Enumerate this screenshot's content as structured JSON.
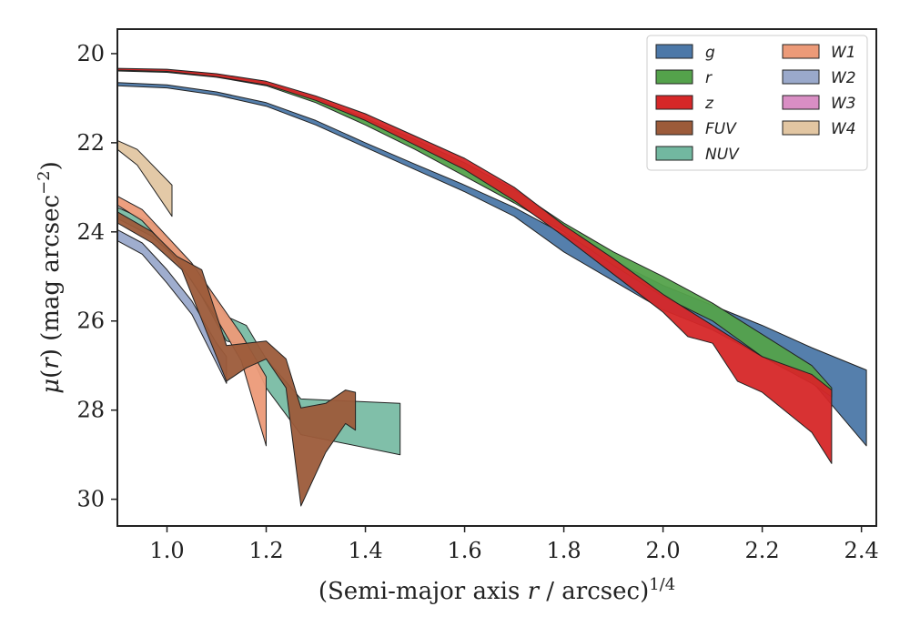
{
  "chart_data": {
    "type": "area",
    "xlabel": "(Semi-major axis r / arcsec)^{1/4}",
    "ylabel": "μ(r) (mag arcsec^{-2})",
    "xlim": [
      0.9,
      2.43
    ],
    "ylim": [
      30.6,
      19.45
    ],
    "y_inverted": true,
    "grid": false,
    "legend_position": "top-right",
    "legend_columns": 2,
    "xticks": [
      "1.0",
      "1.2",
      "1.4",
      "1.6",
      "1.8",
      "2.0",
      "2.2",
      "2.4"
    ],
    "yticks": [
      "20",
      "22",
      "24",
      "26",
      "28",
      "30"
    ],
    "series": [
      {
        "name": "g",
        "color": "#4c78a8",
        "upper": [
          [
            0.9,
            20.65
          ],
          [
            1.0,
            20.7
          ],
          [
            1.1,
            20.86
          ],
          [
            1.2,
            21.1
          ],
          [
            1.3,
            21.5
          ],
          [
            1.4,
            22.0
          ],
          [
            1.5,
            22.48
          ],
          [
            1.6,
            22.95
          ],
          [
            1.7,
            23.45
          ],
          [
            1.8,
            24.05
          ],
          [
            1.9,
            24.65
          ],
          [
            2.0,
            25.2
          ],
          [
            2.1,
            25.65
          ],
          [
            2.2,
            26.1
          ],
          [
            2.3,
            26.6
          ],
          [
            2.41,
            27.1
          ]
        ],
        "lower": [
          [
            0.9,
            20.72
          ],
          [
            1.0,
            20.77
          ],
          [
            1.1,
            20.93
          ],
          [
            1.2,
            21.18
          ],
          [
            1.3,
            21.6
          ],
          [
            1.4,
            22.1
          ],
          [
            1.5,
            22.6
          ],
          [
            1.6,
            23.1
          ],
          [
            1.7,
            23.65
          ],
          [
            1.8,
            24.45
          ],
          [
            1.9,
            25.1
          ],
          [
            2.0,
            25.75
          ],
          [
            2.1,
            26.2
          ],
          [
            2.2,
            26.8
          ],
          [
            2.3,
            27.35
          ],
          [
            2.41,
            28.8
          ]
        ]
      },
      {
        "name": "r",
        "color": "#54a24b",
        "upper": [
          [
            0.9,
            20.35
          ],
          [
            1.0,
            20.37
          ],
          [
            1.1,
            20.47
          ],
          [
            1.2,
            20.65
          ],
          [
            1.3,
            21.0
          ],
          [
            1.4,
            21.45
          ],
          [
            1.5,
            21.93
          ],
          [
            1.6,
            22.45
          ],
          [
            1.7,
            23.05
          ],
          [
            1.8,
            23.8
          ],
          [
            1.9,
            24.45
          ],
          [
            2.0,
            25.0
          ],
          [
            2.1,
            25.6
          ],
          [
            2.2,
            26.3
          ],
          [
            2.3,
            27.0
          ],
          [
            2.34,
            27.5
          ]
        ],
        "lower": [
          [
            0.9,
            20.39
          ],
          [
            1.0,
            20.42
          ],
          [
            1.1,
            20.53
          ],
          [
            1.2,
            20.72
          ],
          [
            1.3,
            21.1
          ],
          [
            1.4,
            21.6
          ],
          [
            1.5,
            22.15
          ],
          [
            1.6,
            22.75
          ],
          [
            1.7,
            23.35
          ],
          [
            1.8,
            24.0
          ],
          [
            1.9,
            24.75
          ],
          [
            2.0,
            25.45
          ],
          [
            2.1,
            26.0
          ],
          [
            2.2,
            26.8
          ],
          [
            2.3,
            27.4
          ],
          [
            2.34,
            27.7
          ]
        ]
      },
      {
        "name": "z",
        "color": "#d62728",
        "upper": [
          [
            0.9,
            20.33
          ],
          [
            1.0,
            20.35
          ],
          [
            1.1,
            20.45
          ],
          [
            1.2,
            20.62
          ],
          [
            1.3,
            20.95
          ],
          [
            1.4,
            21.35
          ],
          [
            1.5,
            21.85
          ],
          [
            1.6,
            22.35
          ],
          [
            1.7,
            23.0
          ],
          [
            1.8,
            23.85
          ],
          [
            1.9,
            24.6
          ],
          [
            2.0,
            25.4
          ],
          [
            2.1,
            26.1
          ],
          [
            2.2,
            26.8
          ],
          [
            2.3,
            27.2
          ],
          [
            2.34,
            27.55
          ]
        ],
        "lower": [
          [
            0.9,
            20.37
          ],
          [
            1.0,
            20.4
          ],
          [
            1.1,
            20.52
          ],
          [
            1.2,
            20.7
          ],
          [
            1.3,
            21.05
          ],
          [
            1.4,
            21.5
          ],
          [
            1.5,
            22.05
          ],
          [
            1.6,
            22.6
          ],
          [
            1.7,
            23.3
          ],
          [
            1.8,
            24.1
          ],
          [
            1.9,
            24.95
          ],
          [
            2.0,
            25.8
          ],
          [
            2.05,
            26.35
          ],
          [
            2.1,
            26.5
          ],
          [
            2.15,
            27.35
          ],
          [
            2.2,
            27.6
          ],
          [
            2.3,
            28.5
          ],
          [
            2.34,
            29.2
          ]
        ]
      },
      {
        "name": "FUV",
        "color": "#9c5b3a",
        "upper": [
          [
            0.9,
            23.55
          ],
          [
            0.97,
            24.0
          ],
          [
            1.02,
            24.55
          ],
          [
            1.07,
            24.85
          ],
          [
            1.12,
            26.55
          ],
          [
            1.16,
            26.5
          ],
          [
            1.2,
            26.45
          ],
          [
            1.24,
            26.85
          ],
          [
            1.27,
            27.95
          ],
          [
            1.32,
            27.85
          ],
          [
            1.36,
            27.55
          ],
          [
            1.38,
            27.6
          ]
        ],
        "lower": [
          [
            0.9,
            23.8
          ],
          [
            0.97,
            24.25
          ],
          [
            1.03,
            24.85
          ],
          [
            1.08,
            26.25
          ],
          [
            1.12,
            27.35
          ],
          [
            1.16,
            27.05
          ],
          [
            1.2,
            26.85
          ],
          [
            1.24,
            27.5
          ],
          [
            1.27,
            30.15
          ],
          [
            1.32,
            28.95
          ],
          [
            1.36,
            28.3
          ],
          [
            1.38,
            28.45
          ]
        ]
      },
      {
        "name": "NUV",
        "color": "#72b8a0",
        "upper": [
          [
            0.9,
            23.45
          ],
          [
            0.97,
            23.8
          ],
          [
            1.02,
            24.35
          ],
          [
            1.07,
            25.05
          ],
          [
            1.12,
            25.9
          ],
          [
            1.16,
            26.1
          ],
          [
            1.2,
            26.85
          ],
          [
            1.27,
            27.75
          ],
          [
            1.47,
            27.85
          ]
        ],
        "lower": [
          [
            0.9,
            23.7
          ],
          [
            0.97,
            24.1
          ],
          [
            1.02,
            24.6
          ],
          [
            1.07,
            25.45
          ],
          [
            1.12,
            26.45
          ],
          [
            1.16,
            26.55
          ],
          [
            1.2,
            27.5
          ],
          [
            1.27,
            28.55
          ],
          [
            1.47,
            29.0
          ]
        ]
      },
      {
        "name": "W1",
        "color": "#ec9a78",
        "upper": [
          [
            0.9,
            23.2
          ],
          [
            0.95,
            23.5
          ],
          [
            1.0,
            24.1
          ],
          [
            1.05,
            24.7
          ],
          [
            1.1,
            25.5
          ],
          [
            1.15,
            26.3
          ],
          [
            1.2,
            27.25
          ]
        ],
        "lower": [
          [
            0.9,
            23.4
          ],
          [
            0.95,
            23.75
          ],
          [
            1.0,
            24.35
          ],
          [
            1.05,
            25.1
          ],
          [
            1.1,
            25.95
          ],
          [
            1.15,
            26.9
          ],
          [
            1.2,
            28.8
          ]
        ]
      },
      {
        "name": "W2",
        "color": "#9aa9cb",
        "upper": [
          [
            0.9,
            23.95
          ],
          [
            0.95,
            24.25
          ],
          [
            1.0,
            24.85
          ],
          [
            1.05,
            25.55
          ],
          [
            1.1,
            26.5
          ],
          [
            1.12,
            26.8
          ]
        ],
        "lower": [
          [
            0.9,
            24.2
          ],
          [
            0.95,
            24.5
          ],
          [
            1.0,
            25.15
          ],
          [
            1.05,
            25.85
          ],
          [
            1.1,
            26.95
          ],
          [
            1.12,
            27.4
          ]
        ]
      },
      {
        "name": "W3",
        "color": "#d98ec4",
        "upper": [],
        "lower": []
      },
      {
        "name": "W4",
        "color": "#e2c6a2",
        "upper": [
          [
            0.9,
            21.95
          ],
          [
            0.94,
            22.15
          ],
          [
            1.01,
            22.95
          ]
        ],
        "lower": [
          [
            0.9,
            22.15
          ],
          [
            0.94,
            22.5
          ],
          [
            1.01,
            23.65
          ]
        ]
      }
    ]
  }
}
